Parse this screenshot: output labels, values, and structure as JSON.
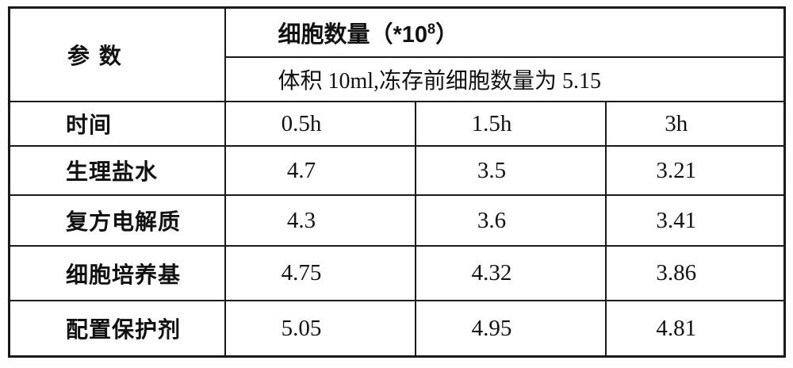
{
  "table": {
    "corner_header": "参 数",
    "main_header": {
      "prefix": "细胞数量（*10",
      "superscript": "8",
      "suffix": "）"
    },
    "sub_header": "体积 10ml,冻存前细胞数量为 5.15",
    "time_row": {
      "label": "时间",
      "values": [
        "0.5h",
        "1.5h",
        "3h"
      ]
    },
    "rows": [
      {
        "label": "生理盐水",
        "values": [
          "4.7",
          "3.5",
          "3.21"
        ]
      },
      {
        "label": "复方电解质",
        "values": [
          "4.3",
          "3.6",
          "3.41"
        ]
      },
      {
        "label": "细胞培养基",
        "values": [
          "4.75",
          "4.32",
          "3.86"
        ]
      },
      {
        "label": "配置保护剂",
        "values": [
          "5.05",
          "4.95",
          "4.81"
        ]
      }
    ]
  },
  "chart_data": {
    "type": "table",
    "title": "细胞数量（*10^8）",
    "subtitle": "体积 10ml,冻存前细胞数量为 5.15",
    "row_header": "参 数",
    "categories": [
      "0.5h",
      "1.5h",
      "3h"
    ],
    "series": [
      {
        "name": "生理盐水",
        "values": [
          4.7,
          3.5,
          3.21
        ]
      },
      {
        "name": "复方电解质",
        "values": [
          4.3,
          3.6,
          3.41
        ]
      },
      {
        "name": "细胞培养基",
        "values": [
          4.75,
          4.32,
          3.86
        ]
      },
      {
        "name": "配置保护剂",
        "values": [
          5.05,
          4.95,
          4.81
        ]
      }
    ],
    "initial_cell_count": 5.15,
    "volume": "10ml"
  }
}
